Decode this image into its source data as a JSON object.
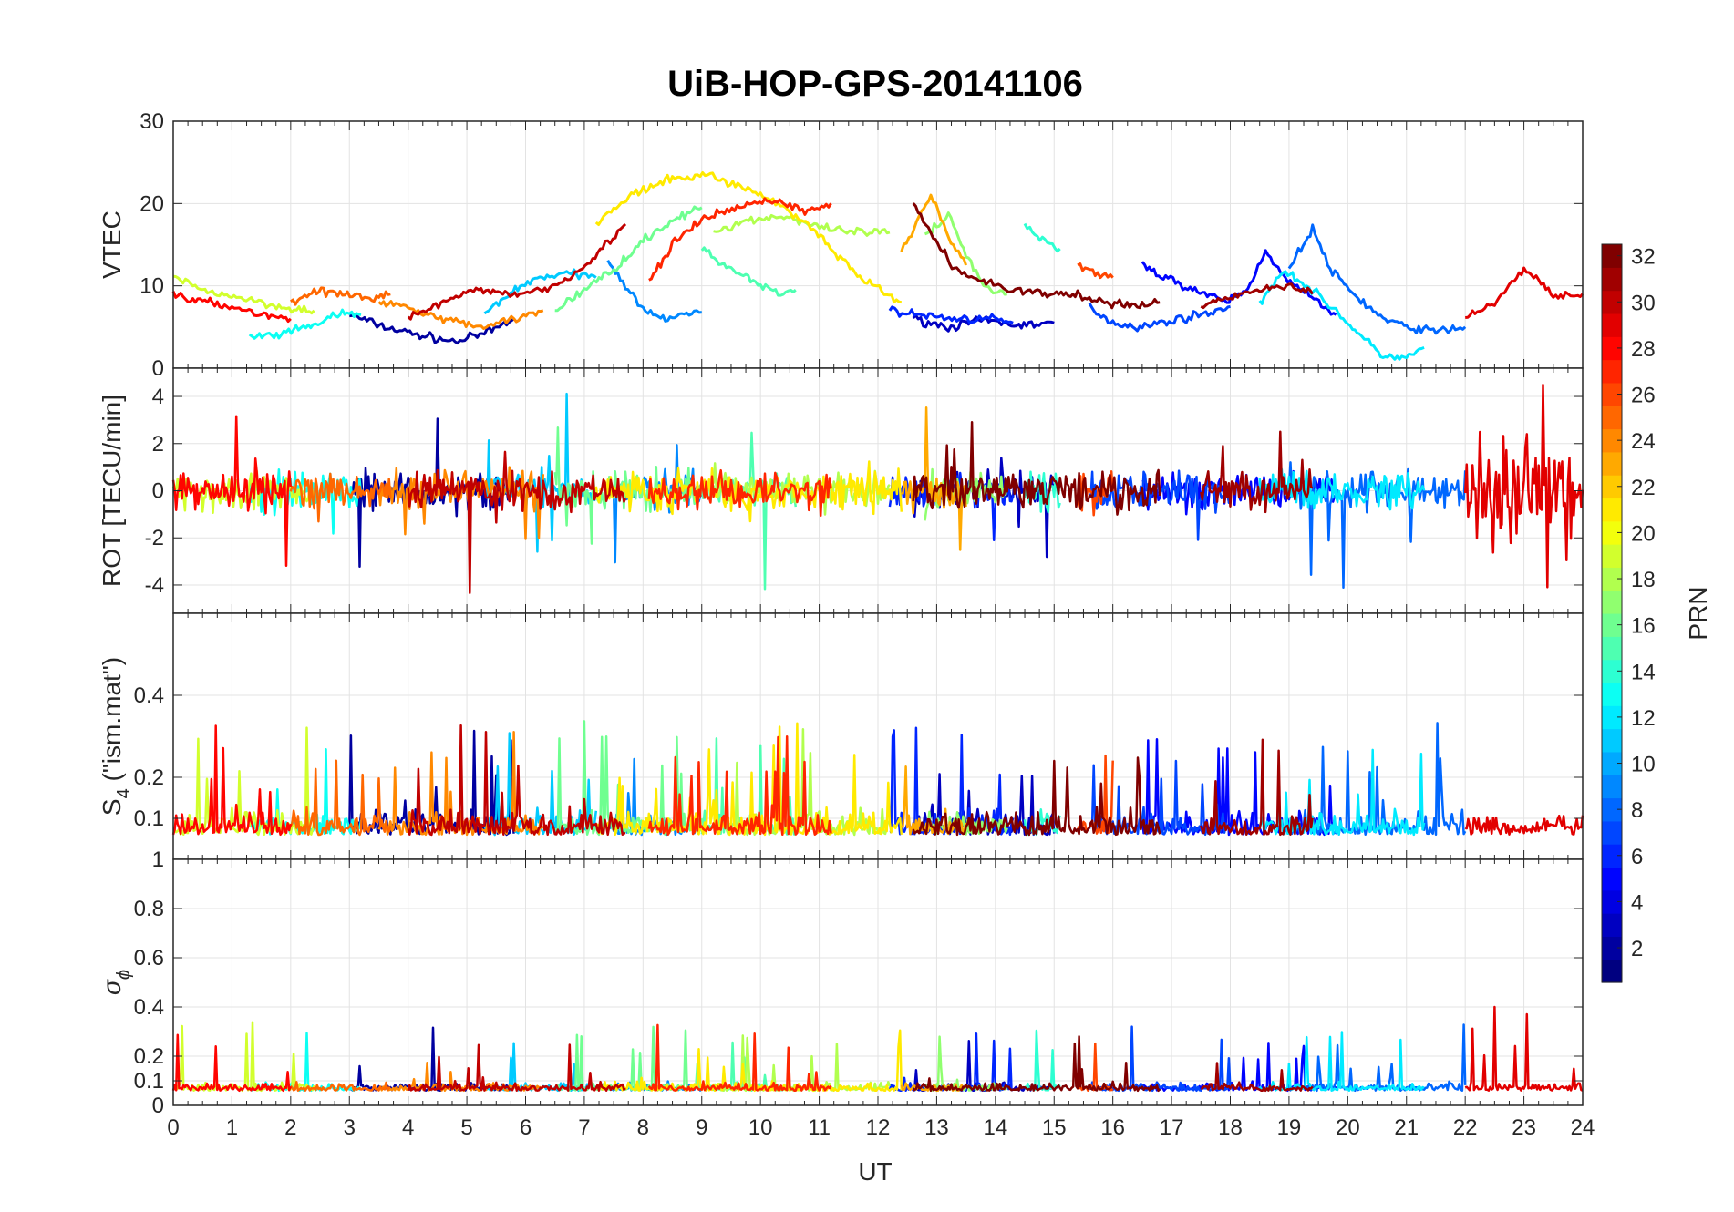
{
  "chart_data": {
    "type": "line",
    "title": "UiB-HOP-GPS-20141106",
    "xlabel": "UT",
    "xlim": [
      0,
      24
    ],
    "x_ticks": [
      "0",
      "1",
      "2",
      "3",
      "4",
      "5",
      "6",
      "7",
      "8",
      "9",
      "10",
      "11",
      "12",
      "13",
      "14",
      "15",
      "16",
      "17",
      "18",
      "19",
      "20",
      "21",
      "22",
      "23",
      "24"
    ],
    "grid": true,
    "panels": [
      {
        "key": "vtec",
        "ylabel": "VTEC",
        "ylim": [
          0,
          30
        ],
        "y_ticks": [
          0,
          10,
          20,
          30
        ],
        "y_tick_labels": [
          "0",
          "10",
          "20",
          "30"
        ]
      },
      {
        "key": "rot",
        "ylabel": "ROT [TECU/min]",
        "ylim": [
          -5.2,
          5.2
        ],
        "y_ticks": [
          -4,
          -2,
          0,
          2,
          4
        ],
        "y_tick_labels": [
          "-4",
          "-2",
          "0",
          "2",
          "4"
        ]
      },
      {
        "key": "s4",
        "ylabel_main": "S",
        "ylabel_sub": "4",
        "ylabel_rest": " (\"ism.mat\")",
        "ylim": [
          0,
          0.6
        ],
        "y_ticks": [
          0.1,
          0.2,
          0.4
        ],
        "y_tick_labels": [
          "0.1",
          "0.2",
          "0.4"
        ]
      },
      {
        "key": "sigma",
        "ylabel_main": "σ",
        "ylabel_sub": "ϕ",
        "ylim": [
          0,
          1
        ],
        "y_ticks": [
          0,
          0.1,
          0.2,
          0.4,
          0.6,
          0.8,
          1
        ],
        "y_tick_labels": [
          "0",
          "0.1",
          "0.2",
          "0.4",
          "0.6",
          "0.8",
          "1"
        ]
      }
    ],
    "colorbar": {
      "label": "PRN",
      "colormap": "jet",
      "range": [
        1,
        32
      ],
      "ticks": [
        2,
        4,
        6,
        8,
        10,
        12,
        14,
        16,
        18,
        20,
        22,
        24,
        26,
        28,
        30,
        32
      ]
    },
    "series": [
      {
        "prn": 2,
        "vtec": [
          [
            3.0,
            6.5
          ],
          [
            3.6,
            5.0
          ],
          [
            4.2,
            4.0
          ],
          [
            4.8,
            3.2
          ],
          [
            5.3,
            4.2
          ],
          [
            5.8,
            6.0
          ]
        ]
      },
      {
        "prn": 3,
        "vtec": [
          [
            12.6,
            6.0
          ],
          [
            13.2,
            5.0
          ],
          [
            13.8,
            5.8
          ],
          [
            14.4,
            5.2
          ],
          [
            15.0,
            5.5
          ]
        ]
      },
      {
        "prn": 5,
        "vtec": [
          [
            16.5,
            12.5
          ],
          [
            16.9,
            11.0
          ],
          [
            17.4,
            9.5
          ],
          [
            17.9,
            8.0
          ],
          [
            18.3,
            9.5
          ],
          [
            18.6,
            14.5
          ],
          [
            18.9,
            11.0
          ],
          [
            19.3,
            9.0
          ],
          [
            19.8,
            6.5
          ]
        ]
      },
      {
        "prn": 6,
        "vtec": [
          [
            12.2,
            7.0
          ],
          [
            12.7,
            6.5
          ],
          [
            13.3,
            6.0
          ],
          [
            13.9,
            6.0
          ],
          [
            14.3,
            5.5
          ]
        ]
      },
      {
        "prn": 7,
        "vtec": [
          [
            15.6,
            7.5
          ],
          [
            16.0,
            5.5
          ],
          [
            16.5,
            5.0
          ],
          [
            17.0,
            5.8
          ],
          [
            17.5,
            6.5
          ],
          [
            18.0,
            7.5
          ]
        ]
      },
      {
        "prn": 8,
        "vtec": [
          [
            19.0,
            12.0
          ],
          [
            19.4,
            17.0
          ],
          [
            19.7,
            12.0
          ],
          [
            20.1,
            9.0
          ],
          [
            20.6,
            6.0
          ],
          [
            21.0,
            5.0
          ],
          [
            21.5,
            4.5
          ],
          [
            22.0,
            5.0
          ]
        ]
      },
      {
        "prn": 9,
        "vtec": [
          [
            7.4,
            13.0
          ],
          [
            7.7,
            10.0
          ],
          [
            8.0,
            7.0
          ],
          [
            8.3,
            6.0
          ],
          [
            8.7,
            6.5
          ],
          [
            9.0,
            6.8
          ]
        ]
      },
      {
        "prn": 11,
        "vtec": [
          [
            5.3,
            6.5
          ],
          [
            5.7,
            9.0
          ],
          [
            6.2,
            11.0
          ],
          [
            6.7,
            11.5
          ],
          [
            7.2,
            11.0
          ]
        ]
      },
      {
        "prn": 12,
        "vtec": [
          [
            18.5,
            8.0
          ],
          [
            18.9,
            12.0
          ],
          [
            19.3,
            10.0
          ],
          [
            19.8,
            7.0
          ],
          [
            20.2,
            4.0
          ],
          [
            20.6,
            1.5
          ],
          [
            21.0,
            1.2
          ],
          [
            21.3,
            2.5
          ]
        ]
      },
      {
        "prn": 13,
        "vtec": [
          [
            1.3,
            3.8
          ],
          [
            1.8,
            4.0
          ],
          [
            2.3,
            5.0
          ],
          [
            2.8,
            6.5
          ],
          [
            3.2,
            6.5
          ]
        ]
      },
      {
        "prn": 14,
        "vtec": [
          [
            14.5,
            17.5
          ],
          [
            14.8,
            15.5
          ],
          [
            15.1,
            14.5
          ]
        ]
      },
      {
        "prn": 15,
        "vtec": [
          [
            9.0,
            14.5
          ],
          [
            9.5,
            12.0
          ],
          [
            10.0,
            10.0
          ],
          [
            10.3,
            9.0
          ],
          [
            10.6,
            9.5
          ]
        ]
      },
      {
        "prn": 16,
        "vtec": [
          [
            6.5,
            7.0
          ],
          [
            7.0,
            9.5
          ],
          [
            7.5,
            12.0
          ],
          [
            8.0,
            15.5
          ],
          [
            8.5,
            18.0
          ],
          [
            9.0,
            19.5
          ]
        ]
      },
      {
        "prn": 17,
        "vtec": [
          [
            12.8,
            16.0
          ],
          [
            13.2,
            18.5
          ],
          [
            13.5,
            14.0
          ],
          [
            13.8,
            10.0
          ],
          [
            14.2,
            9.0
          ]
        ]
      },
      {
        "prn": 18,
        "vtec": [
          [
            9.2,
            16.5
          ],
          [
            9.8,
            18.0
          ],
          [
            10.4,
            18.5
          ],
          [
            11.0,
            17.0
          ],
          [
            11.6,
            16.5
          ],
          [
            12.2,
            16.5
          ]
        ]
      },
      {
        "prn": 19,
        "vtec": [
          [
            0.0,
            11.0
          ],
          [
            0.5,
            9.5
          ],
          [
            1.2,
            8.5
          ],
          [
            1.8,
            7.5
          ],
          [
            2.4,
            7.0
          ]
        ]
      },
      {
        "prn": 21,
        "vtec": [
          [
            7.2,
            17.5
          ],
          [
            7.8,
            21.0
          ],
          [
            8.5,
            23.0
          ],
          [
            9.1,
            23.5
          ],
          [
            9.7,
            22.0
          ],
          [
            10.3,
            20.0
          ],
          [
            10.9,
            17.0
          ],
          [
            11.4,
            13.0
          ],
          [
            11.9,
            10.0
          ],
          [
            12.4,
            8.0
          ]
        ]
      },
      {
        "prn": 23,
        "vtec": [
          [
            12.4,
            14.0
          ],
          [
            12.7,
            18.5
          ],
          [
            12.9,
            21.0
          ],
          [
            13.2,
            16.0
          ],
          [
            13.5,
            12.5
          ]
        ]
      },
      {
        "prn": 24,
        "vtec": [
          [
            3.5,
            8.0
          ],
          [
            4.0,
            7.5
          ],
          [
            4.6,
            6.0
          ],
          [
            5.2,
            5.0
          ],
          [
            5.8,
            6.0
          ],
          [
            6.3,
            7.0
          ]
        ]
      },
      {
        "prn": 25,
        "vtec": [
          [
            2.0,
            8.0
          ],
          [
            2.4,
            9.5
          ],
          [
            2.8,
            9.0
          ],
          [
            3.3,
            8.5
          ],
          [
            3.7,
            9.0
          ]
        ]
      },
      {
        "prn": 26,
        "vtec": [
          [
            15.4,
            12.5
          ],
          [
            15.7,
            11.5
          ],
          [
            16.0,
            11.0
          ]
        ]
      },
      {
        "prn": 27,
        "vtec": [
          [
            8.1,
            10.5
          ],
          [
            8.5,
            15.0
          ],
          [
            9.0,
            18.0
          ],
          [
            9.6,
            19.5
          ],
          [
            10.2,
            20.5
          ],
          [
            10.8,
            19.0
          ],
          [
            11.2,
            20.0
          ]
        ]
      },
      {
        "prn": 28,
        "vtec": [
          [
            0.0,
            9.0
          ],
          [
            0.5,
            8.0
          ],
          [
            1.0,
            7.5
          ],
          [
            1.5,
            6.5
          ],
          [
            2.0,
            6.0
          ]
        ]
      },
      {
        "prn": 29,
        "vtec": [
          [
            22.0,
            6.0
          ],
          [
            22.5,
            8.0
          ],
          [
            23.0,
            12.0
          ],
          [
            23.5,
            9.0
          ],
          [
            24.0,
            9.0
          ]
        ]
      },
      {
        "prn": 30,
        "vtec": [
          [
            4.0,
            6.0
          ],
          [
            4.6,
            8.0
          ],
          [
            5.2,
            9.5
          ],
          [
            5.9,
            9.0
          ],
          [
            6.5,
            10.0
          ],
          [
            7.1,
            13.0
          ],
          [
            7.7,
            17.5
          ]
        ]
      },
      {
        "prn": 31,
        "vtec": [
          [
            17.5,
            7.5
          ],
          [
            18.0,
            8.5
          ],
          [
            18.5,
            9.5
          ],
          [
            19.0,
            10.0
          ],
          [
            19.4,
            9.0
          ]
        ]
      },
      {
        "prn": 32,
        "vtec": [
          [
            12.6,
            20.0
          ],
          [
            12.9,
            16.5
          ],
          [
            13.3,
            12.0
          ],
          [
            13.8,
            10.5
          ],
          [
            14.3,
            9.5
          ],
          [
            14.8,
            9.0
          ],
          [
            15.2,
            9.0
          ],
          [
            15.6,
            8.5
          ],
          [
            16.2,
            7.5
          ],
          [
            16.8,
            8.0
          ]
        ]
      }
    ]
  }
}
